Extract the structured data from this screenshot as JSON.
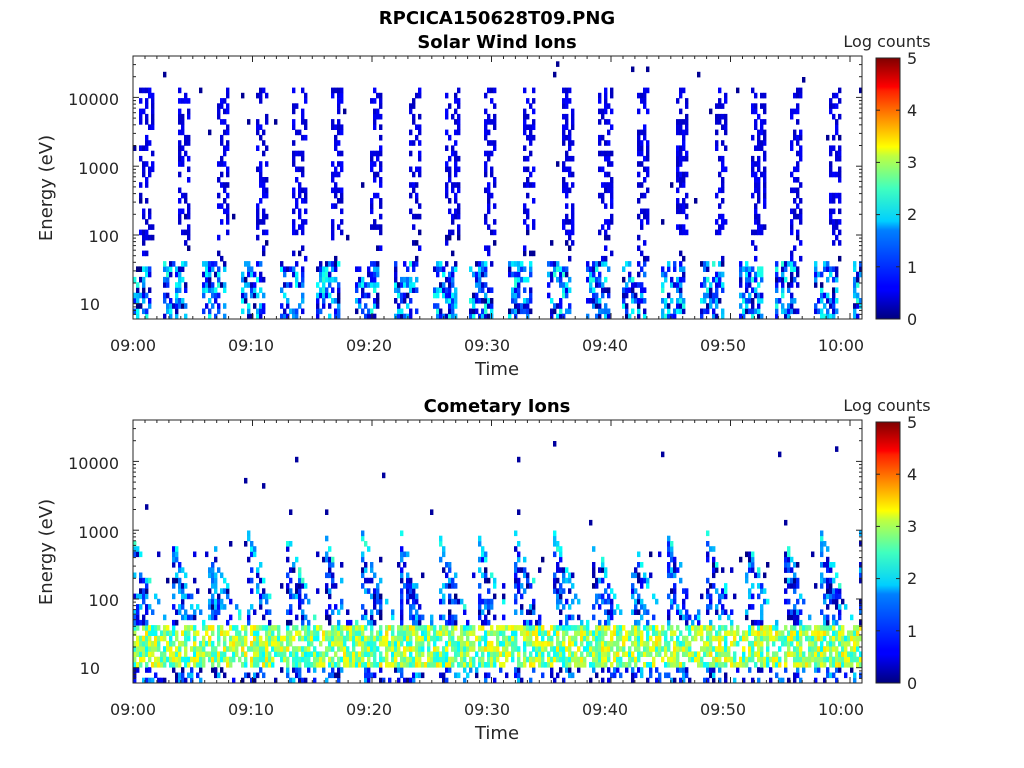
{
  "figure": {
    "title": "RPCICA150628T09.PNG"
  },
  "chart_data": [
    {
      "type": "heatmap",
      "title": "Solar Wind Ions",
      "xlabel": "Time",
      "ylabel": "Energy (eV)",
      "x_ticks": [
        "09:00",
        "09:10",
        "09:20",
        "09:30",
        "09:40",
        "09:50",
        "10:00"
      ],
      "xlim": [
        "09:00",
        "10:01"
      ],
      "y_scale": "log",
      "y_ticks": [
        "10",
        "100",
        "1000",
        "10000"
      ],
      "ylim": [
        6,
        40000
      ],
      "colorbar": {
        "label": "Log counts",
        "range": [
          0,
          5
        ],
        "ticks": [
          "0",
          "1",
          "2",
          "3",
          "4",
          "5"
        ],
        "colormap": "jet"
      },
      "grid": false,
      "pattern": {
        "scan_period_minutes": 3.2,
        "high_energy_band_eV": [
          100,
          15000
        ],
        "high_energy_level_log_counts": 0.3,
        "low_energy_band_eV": [
          6,
          40
        ],
        "low_energy_level_log_counts": 1.5
      }
    },
    {
      "type": "heatmap",
      "title": "Cometary Ions",
      "xlabel": "Time",
      "ylabel": "Energy (eV)",
      "x_ticks": [
        "09:00",
        "09:10",
        "09:20",
        "09:30",
        "09:40",
        "09:50",
        "10:00"
      ],
      "xlim": [
        "09:00",
        "10:01"
      ],
      "y_scale": "log",
      "y_ticks": [
        "10",
        "100",
        "1000",
        "10000"
      ],
      "ylim": [
        6,
        40000
      ],
      "colorbar": {
        "label": "Log counts",
        "range": [
          0,
          5
        ],
        "ticks": [
          "0",
          "1",
          "2",
          "3",
          "4",
          "5"
        ],
        "colormap": "jet"
      },
      "grid": false,
      "pattern": {
        "scan_period_minutes": 3.2,
        "peak_energy_band_eV": [
          10,
          40
        ],
        "peak_level_log_counts": 3.3,
        "max_energy_eV": 1000,
        "sparse_background_eV": [
          500,
          20000
        ]
      }
    }
  ]
}
